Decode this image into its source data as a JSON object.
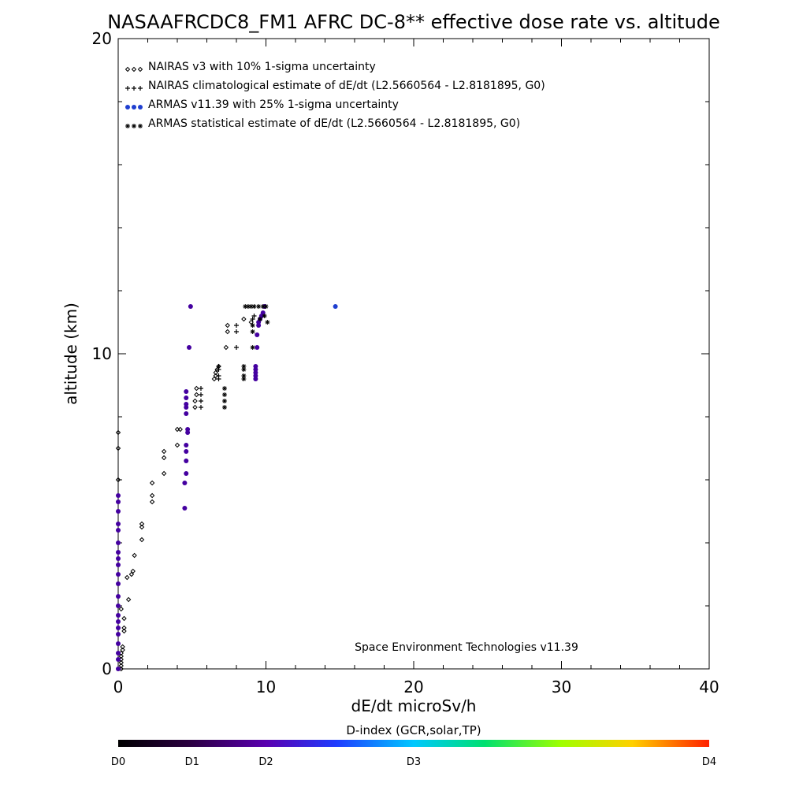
{
  "chart_data": {
    "type": "scatter",
    "title": "NASAAFRCDC8_FM1 AFRC DC-8** effective dose rate vs. altitude",
    "xlabel": "dE/dt microSv/h",
    "ylabel": "altitude (km)",
    "xlim": [
      0,
      40
    ],
    "ylim": [
      0,
      20
    ],
    "x_ticks": [
      "0",
      "10",
      "20",
      "30",
      "40"
    ],
    "y_ticks": [
      "0",
      "10",
      "20"
    ],
    "grid": false,
    "legend_position": "top-left",
    "credit": "Space Environment Technologies v11.39",
    "series": [
      {
        "name": "NAIRAS v3 with 10% 1-sigma uncertainty",
        "marker": "diamond",
        "color": "#000000",
        "points": [
          [
            0.2,
            0.0
          ],
          [
            0.2,
            0.1
          ],
          [
            0.2,
            0.2
          ],
          [
            0.2,
            0.3
          ],
          [
            0.2,
            0.4
          ],
          [
            0.2,
            0.5
          ],
          [
            0.3,
            0.6
          ],
          [
            0.3,
            0.7
          ],
          [
            0.4,
            1.2
          ],
          [
            0.4,
            1.3
          ],
          [
            0.4,
            1.6
          ],
          [
            0.2,
            1.9
          ],
          [
            0.7,
            2.2
          ],
          [
            0.6,
            2.9
          ],
          [
            0.9,
            3.0
          ],
          [
            1.0,
            3.1
          ],
          [
            1.1,
            3.6
          ],
          [
            1.6,
            4.1
          ],
          [
            1.6,
            4.5
          ],
          [
            1.6,
            4.6
          ],
          [
            2.3,
            5.3
          ],
          [
            2.3,
            5.5
          ],
          [
            2.3,
            5.9
          ],
          [
            3.1,
            6.2
          ],
          [
            3.1,
            6.7
          ],
          [
            3.1,
            6.9
          ],
          [
            4.0,
            7.1
          ],
          [
            4.0,
            7.6
          ],
          [
            4.2,
            7.6
          ],
          [
            0.0,
            7.0
          ],
          [
            0.0,
            7.5
          ],
          [
            0.0,
            6.0
          ],
          [
            6.5,
            9.2
          ],
          [
            6.6,
            9.3
          ],
          [
            6.6,
            9.4
          ],
          [
            6.7,
            9.5
          ],
          [
            6.8,
            9.6
          ],
          [
            5.2,
            8.3
          ],
          [
            5.2,
            8.5
          ],
          [
            5.3,
            8.7
          ],
          [
            5.3,
            8.9
          ],
          [
            7.3,
            10.2
          ],
          [
            7.4,
            10.7
          ],
          [
            7.4,
            10.9
          ],
          [
            8.5,
            11.1
          ],
          [
            9.0,
            11.0
          ]
        ]
      },
      {
        "name": "NAIRAS climatological estimate of dE/dt (L2.5660564 - L2.8181895, G0)",
        "marker": "plus",
        "color": "#000000",
        "points": [
          [
            5.6,
            8.3
          ],
          [
            5.6,
            8.5
          ],
          [
            5.6,
            8.7
          ],
          [
            5.6,
            8.9
          ],
          [
            6.8,
            9.2
          ],
          [
            6.8,
            9.3
          ],
          [
            6.8,
            9.5
          ],
          [
            6.8,
            9.6
          ],
          [
            8.0,
            10.2
          ],
          [
            8.0,
            10.7
          ],
          [
            8.0,
            10.9
          ],
          [
            9.1,
            11.1
          ],
          [
            9.2,
            11.2
          ]
        ]
      },
      {
        "name": "ARMAS v11.39 with 25% 1-sigma uncertainty",
        "marker": "filled-circle",
        "color": "#4400a0",
        "legend_color": "#1f3fd0",
        "points": [
          [
            0.0,
            0.0
          ],
          [
            0.0,
            0.3
          ],
          [
            0.0,
            0.5
          ],
          [
            0.0,
            0.8
          ],
          [
            0.0,
            1.1
          ],
          [
            0.0,
            1.3
          ],
          [
            0.0,
            1.5
          ],
          [
            0.0,
            1.7
          ],
          [
            0.0,
            2.0
          ],
          [
            0.0,
            2.3
          ],
          [
            0.0,
            2.7
          ],
          [
            0.0,
            3.0
          ],
          [
            0.0,
            3.3
          ],
          [
            0.0,
            3.5
          ],
          [
            0.0,
            3.7
          ],
          [
            0.0,
            4.0
          ],
          [
            0.0,
            4.4
          ],
          [
            0.0,
            4.6
          ],
          [
            0.0,
            5.0
          ],
          [
            0.0,
            5.3
          ],
          [
            0.0,
            5.5
          ],
          [
            4.5,
            5.1
          ],
          [
            4.5,
            5.9
          ],
          [
            4.6,
            6.2
          ],
          [
            4.6,
            6.6
          ],
          [
            4.6,
            6.9
          ],
          [
            4.6,
            7.1
          ],
          [
            4.7,
            7.5
          ],
          [
            4.7,
            7.6
          ],
          [
            4.6,
            8.1
          ],
          [
            4.6,
            8.3
          ],
          [
            4.6,
            8.4
          ],
          [
            4.6,
            8.6
          ],
          [
            4.6,
            8.8
          ],
          [
            4.8,
            10.2
          ],
          [
            4.9,
            11.5
          ],
          [
            9.3,
            9.2
          ],
          [
            9.3,
            9.3
          ],
          [
            9.3,
            9.4
          ],
          [
            9.3,
            9.5
          ],
          [
            9.3,
            9.6
          ],
          [
            9.4,
            10.2
          ],
          [
            9.4,
            10.6
          ],
          [
            9.5,
            10.9
          ],
          [
            9.5,
            11.0
          ],
          [
            9.6,
            11.1
          ],
          [
            9.7,
            11.2
          ],
          [
            9.8,
            11.3
          ],
          [
            9.9,
            11.5
          ],
          [
            14.7,
            11.5
          ]
        ]
      },
      {
        "name": "ARMAS statistical estimate of dE/dt (L2.5660564 - L2.8181895, G0)",
        "marker": "asterisk",
        "color": "#000000",
        "points": [
          [
            7.2,
            8.3
          ],
          [
            7.2,
            8.5
          ],
          [
            7.2,
            8.7
          ],
          [
            7.2,
            8.9
          ],
          [
            8.5,
            9.2
          ],
          [
            8.5,
            9.3
          ],
          [
            8.5,
            9.5
          ],
          [
            8.5,
            9.6
          ],
          [
            9.1,
            10.2
          ],
          [
            9.1,
            10.7
          ],
          [
            9.1,
            10.9
          ],
          [
            9.6,
            11.1
          ],
          [
            10.1,
            11.0
          ],
          [
            9.9,
            11.2
          ],
          [
            8.6,
            11.5
          ],
          [
            8.8,
            11.5
          ],
          [
            9.0,
            11.5
          ],
          [
            9.2,
            11.5
          ],
          [
            9.5,
            11.5
          ],
          [
            9.8,
            11.5
          ],
          [
            10.0,
            11.5
          ]
        ]
      }
    ],
    "colorbar": {
      "title": "D-index (GCR,solar,TP)",
      "stops": [
        {
          "offset": 0.0,
          "color": "#000000"
        },
        {
          "offset": 0.12,
          "color": "#2a0040"
        },
        {
          "offset": 0.25,
          "color": "#5a00b0"
        },
        {
          "offset": 0.37,
          "color": "#1e3cff"
        },
        {
          "offset": 0.5,
          "color": "#00c8ff"
        },
        {
          "offset": 0.62,
          "color": "#00e070"
        },
        {
          "offset": 0.75,
          "color": "#a0ff00"
        },
        {
          "offset": 0.87,
          "color": "#ffd000"
        },
        {
          "offset": 1.0,
          "color": "#ff2000"
        }
      ],
      "labels": [
        {
          "text": "D0",
          "value": 0.0
        },
        {
          "text": "D1",
          "value": 0.125
        },
        {
          "text": "D2",
          "value": 0.25
        },
        {
          "text": "D3",
          "value": 0.5
        },
        {
          "text": "D4",
          "value": 1.0
        }
      ]
    }
  }
}
